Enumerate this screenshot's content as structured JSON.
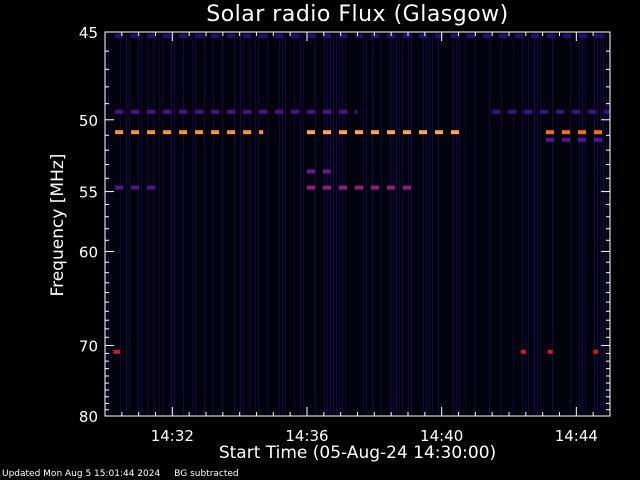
{
  "chart_data": {
    "type": "heatmap",
    "title": "Solar radio Flux (Glasgow)",
    "ylabel": "Frequency [MHz]",
    "xlabel": "Start Time (05-Aug-24 14:30:00)",
    "xlim": [
      0,
      15
    ],
    "ylim": [
      45,
      80
    ],
    "y_scale": "reciprocal",
    "x_ticks": [
      {
        "minute": 2,
        "label": "14:32"
      },
      {
        "minute": 6,
        "label": "14:36"
      },
      {
        "minute": 10,
        "label": "14:40"
      },
      {
        "minute": 14,
        "label": "14:44"
      }
    ],
    "y_ticks": [
      {
        "value": 45,
        "label": "45"
      },
      {
        "value": 50,
        "label": "50"
      },
      {
        "value": 55,
        "label": "55"
      },
      {
        "value": 60,
        "label": "60"
      },
      {
        "value": 70,
        "label": "70"
      },
      {
        "value": 80,
        "label": "80"
      }
    ],
    "y_minor_ticks": [
      46,
      47,
      48,
      49,
      51,
      52,
      53,
      54,
      56,
      57,
      58,
      59,
      61,
      62,
      63,
      64,
      65,
      66,
      67,
      68,
      69,
      71,
      72,
      73,
      74,
      75,
      76,
      77,
      78,
      79
    ],
    "x_minor_step": 0.5,
    "colormap": [
      "#000000",
      "#2a0a8c",
      "#7a1aa0",
      "#e8140a",
      "#ff8a1a",
      "#ffe0a0"
    ],
    "bands": [
      {
        "freq": 50.8,
        "x_start": 0.3,
        "x_end": 4.7,
        "intensity": 0.82
      },
      {
        "freq": 50.8,
        "x_start": 6.0,
        "x_end": 10.7,
        "intensity": 0.86
      },
      {
        "freq": 50.8,
        "x_start": 13.1,
        "x_end": 15.0,
        "intensity": 0.75
      },
      {
        "freq": 49.5,
        "x_start": 0.3,
        "x_end": 7.5,
        "intensity": 0.28
      },
      {
        "freq": 49.5,
        "x_start": 11.5,
        "x_end": 15.0,
        "intensity": 0.25
      },
      {
        "freq": 51.3,
        "x_start": 13.1,
        "x_end": 15.0,
        "intensity": 0.3
      },
      {
        "freq": 54.7,
        "x_start": 0.3,
        "x_end": 1.5,
        "intensity": 0.3
      },
      {
        "freq": 54.7,
        "x_start": 6.0,
        "x_end": 9.2,
        "intensity": 0.45
      },
      {
        "freq": 53.5,
        "x_start": 6.0,
        "x_end": 6.7,
        "intensity": 0.35
      },
      {
        "freq": 45.2,
        "x_start": 0.3,
        "x_end": 15.0,
        "intensity": 0.18
      },
      {
        "freq": 70.8,
        "x_start": 0.25,
        "x_end": 0.45,
        "intensity": 0.55
      },
      {
        "freq": 70.8,
        "x_start": 12.35,
        "x_end": 12.5,
        "intensity": 0.55
      },
      {
        "freq": 70.8,
        "x_start": 13.15,
        "x_end": 13.3,
        "intensity": 0.55
      },
      {
        "freq": 70.8,
        "x_start": 14.5,
        "x_end": 14.65,
        "intensity": 0.55
      }
    ]
  },
  "footer": {
    "updated": "Updated Mon Aug  5 15:01:44 2024",
    "note": "BG subtracted"
  }
}
